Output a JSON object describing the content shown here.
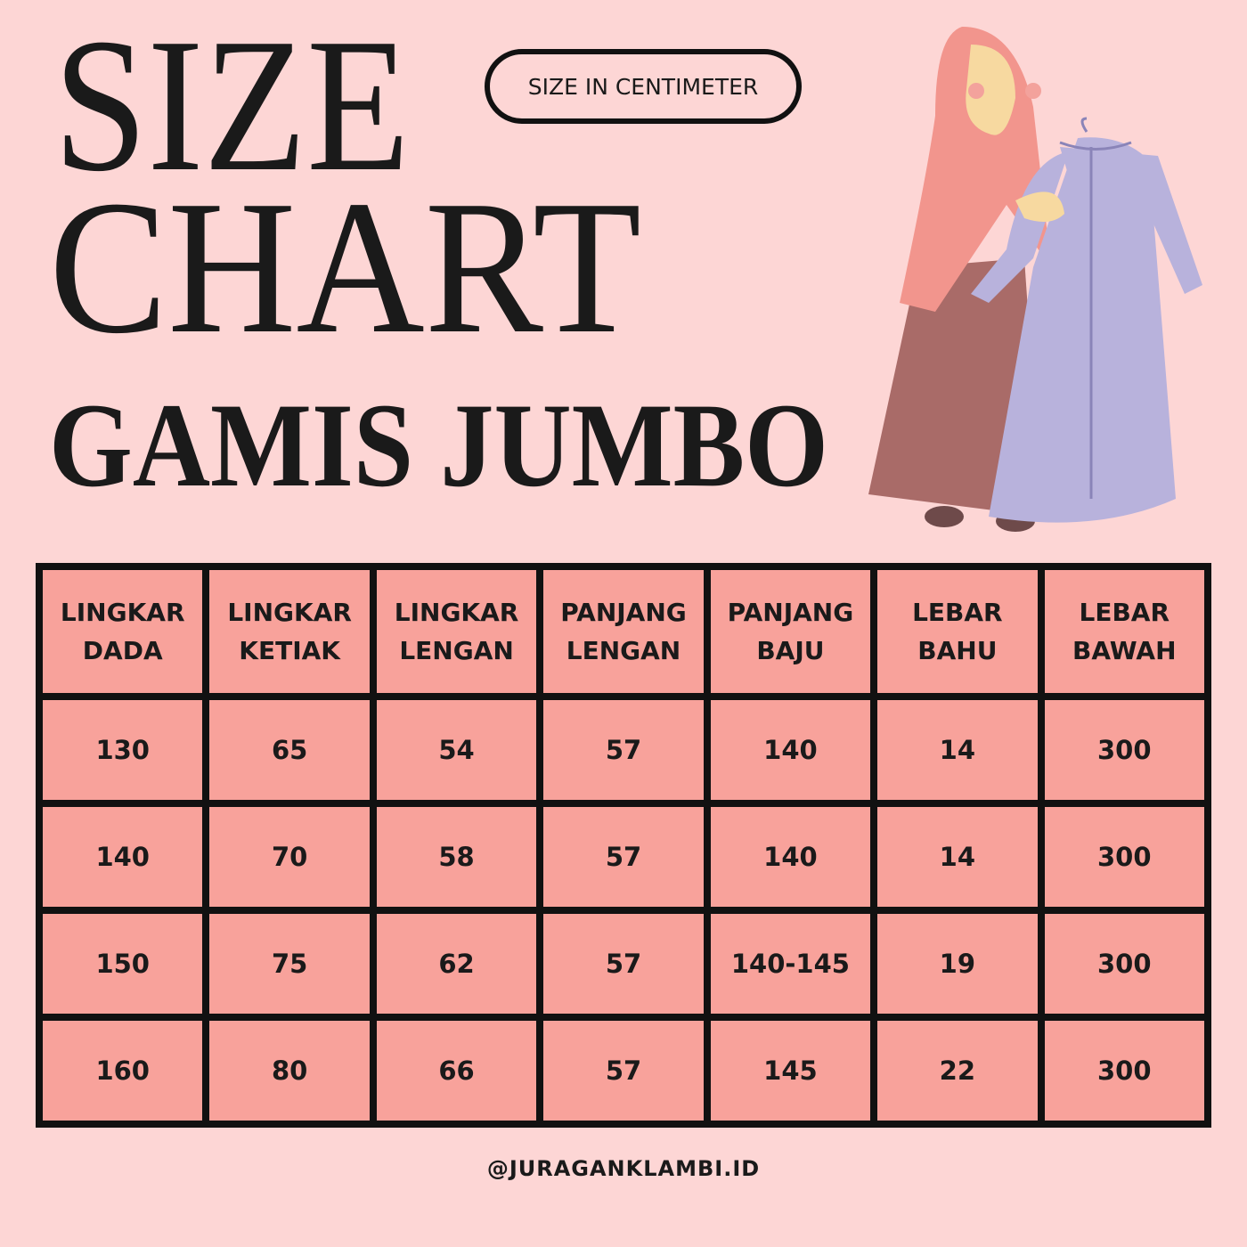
{
  "header": {
    "title_line1": "SIZE",
    "title_line2": "CHART",
    "subtitle": "GAMIS JUMBO",
    "badge": "SIZE IN CENTIMETER"
  },
  "table": {
    "header": [
      "LINGKAR DADA",
      "LINGKAR KETIAK",
      "LINGKAR LENGAN",
      "PANJANG LENGAN",
      "PANJANG BAJU",
      "LEBAR BAHU",
      "LEBAR BAWAH"
    ],
    "rows": [
      [
        "130",
        "65",
        "54",
        "57",
        "140",
        "14",
        "300"
      ],
      [
        "140",
        "70",
        "58",
        "57",
        "140",
        "14",
        "300"
      ],
      [
        "150",
        "75",
        "62",
        "57",
        "140-145",
        "19",
        "300"
      ],
      [
        "160",
        "80",
        "66",
        "57",
        "145",
        "22",
        "300"
      ]
    ]
  },
  "footer": {
    "handle": "@JURAGANKLAMBI.ID"
  }
}
